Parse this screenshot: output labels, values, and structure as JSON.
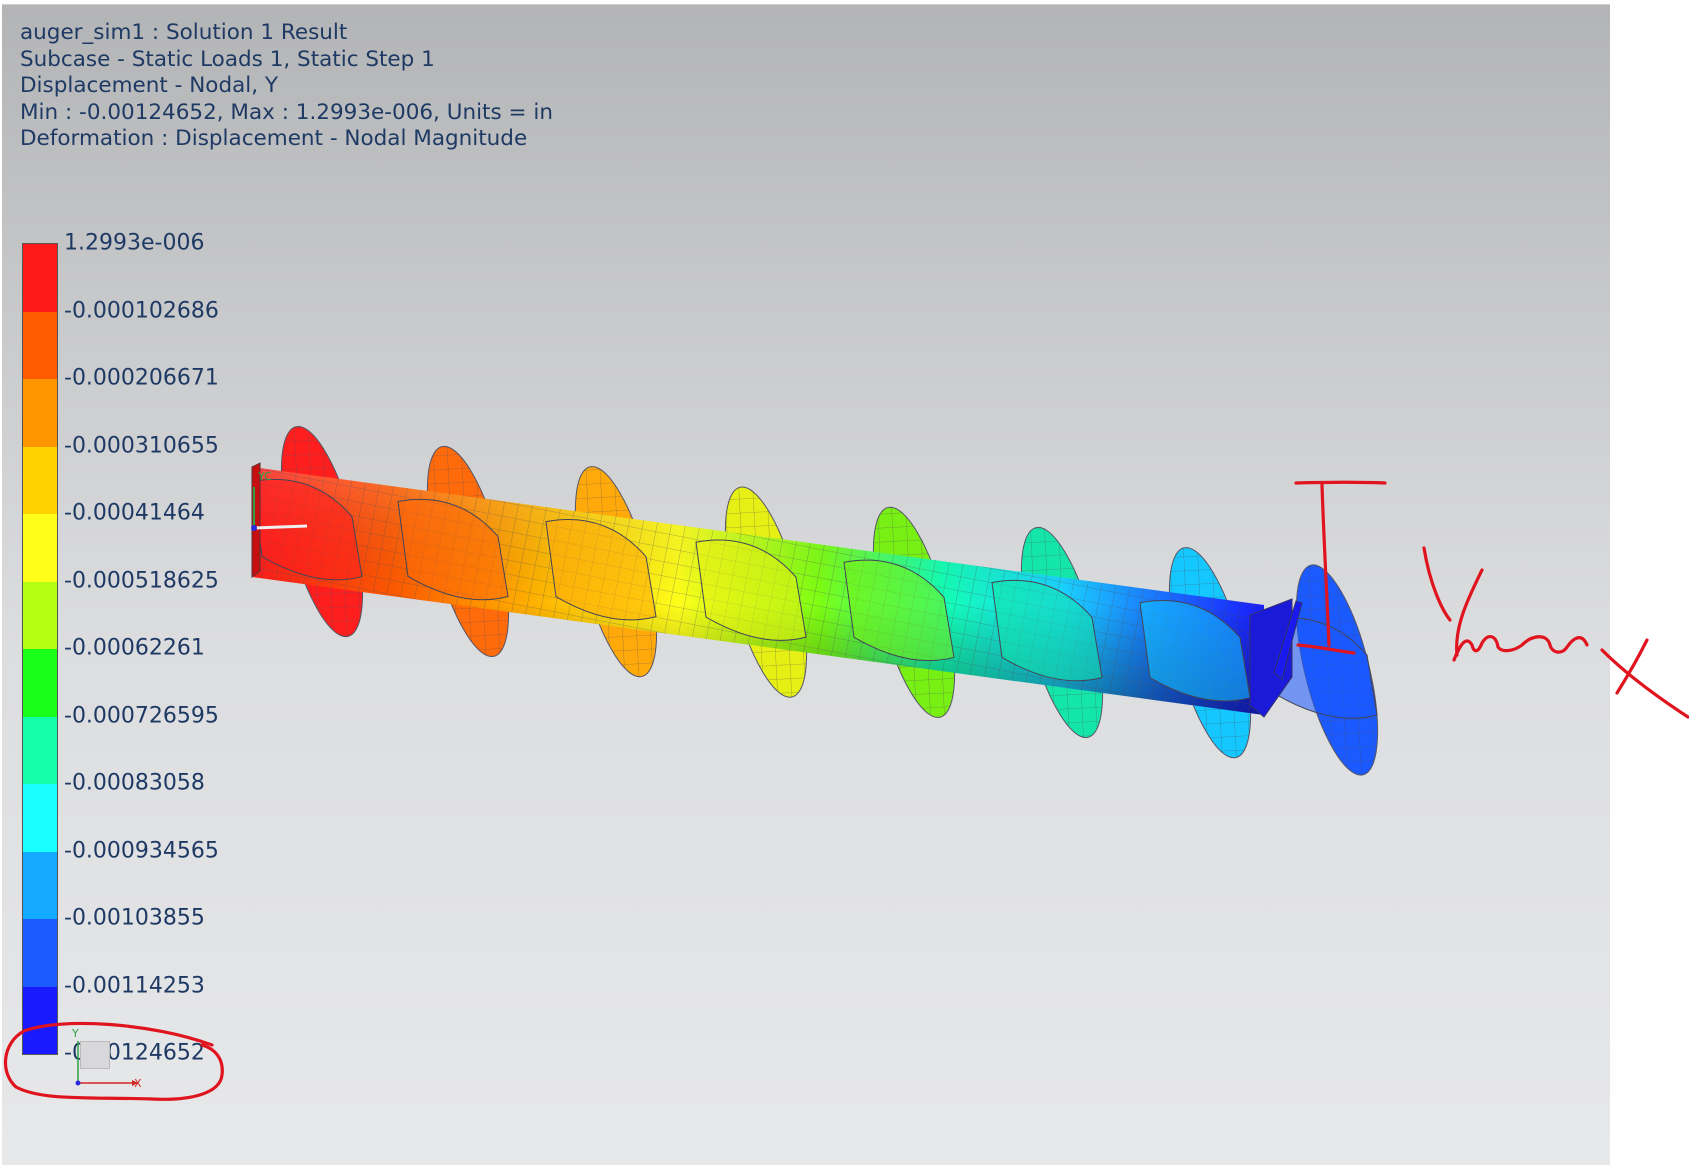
{
  "header": {
    "line1": "auger_sim1 : Solution 1 Result",
    "line2": "Subcase - Static Loads 1, Static Step 1",
    "line3": "Displacement - Nodal, Y",
    "line4": "Min : -0.00124652, Max : 1.2993e-006, Units = in",
    "line5": "Deformation : Displacement - Nodal Magnitude"
  },
  "legend": {
    "labels": [
      "1.2993e-006",
      "-0.000102686",
      "-0.000206671",
      "-0.000310655",
      "-0.00041464",
      "-0.000518625",
      "-0.00062261",
      "-0.000726595",
      "-0.00083058",
      "-0.000934565",
      "-0.00103855",
      "-0.00114253",
      "-0.00124652"
    ],
    "colors": [
      "#ff1a1a",
      "#ff5a00",
      "#ff9600",
      "#ffd200",
      "#ffff1a",
      "#b4ff14",
      "#1aff1a",
      "#14ffaa",
      "#1affff",
      "#14aaff",
      "#1a5aff",
      "#1a1aff"
    ]
  },
  "view_triad": {
    "y_label": "Y",
    "x_label": "X"
  },
  "model_triad": {
    "label": "YC"
  },
  "annotation": {
    "handwritten_text": "Ymax"
  },
  "colors": {
    "text": "#1e3a64",
    "annotation_red": "#e0141e"
  }
}
